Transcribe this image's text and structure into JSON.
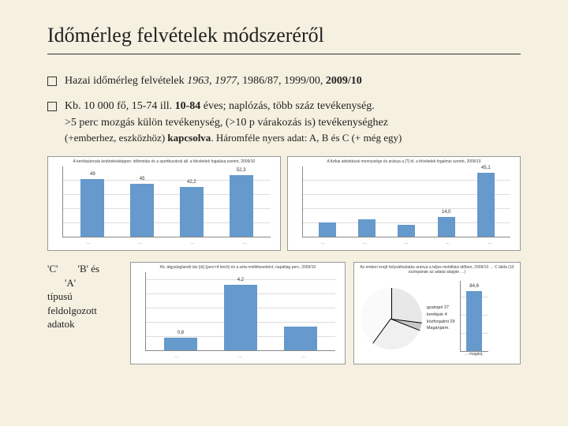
{
  "title": "Időmérleg felvételek módszeréről",
  "bullets": [
    {
      "prefix": "Hazai időmérleg felvételek ",
      "italic": "1963, 1977",
      "rest": ", 1986/87, 1999/00, ",
      "bold": "2009/10"
    },
    {
      "line1a": "Kb. 10 000 fő, 15-74 ill. ",
      "line1b": "10-84",
      "line1c": " éves; naplózás, több száz tevékenység.",
      "line2": ">5 perc mozgás külön tevékenység, (>10 p várakozás is) tevékenységhez",
      "line3a": "(+emberhez, eszközhöz) ",
      "line3b": "kapcsolva",
      "line3c": ". Háromféle nyers adat: ",
      "line3d": "A, B ",
      "line3e": "és",
      "line3f": " C (+ még egy)"
    }
  ],
  "chart1": {
    "title": "A kerékpározás kedvtelésképpen: időmintás és a sportbuvárok átl. a felvételek fogalása szerint, 2009/10",
    "bar_color": "#6699cc",
    "categories": [
      "…",
      "…",
      "…",
      "…"
    ],
    "values": [
      49.0,
      45.0,
      42.2,
      52.3
    ],
    "max": 60
  },
  "chart2": {
    "title": "A fizikai aktivitások mennyisége és aránya a [?] id. a felvételek fogalmai szerint, 2009/10",
    "bar_color": "#6699cc",
    "categories": [
      "…",
      "…",
      "…",
      "…",
      "…"
    ],
    "values": [
      10,
      12,
      8,
      14.0,
      45.1
    ],
    "labels": [
      "",
      "",
      "",
      "14,0",
      "45,1"
    ],
    "max": 50
  },
  "sidetext": {
    "c": "'C'",
    "indent_b": "'B' és",
    "a": "'A'",
    "l1": "típusú",
    "l2": "feldolgozott",
    "l3": "adatok"
  },
  "chart3": {
    "title": "Kb. átgyaloglandó táv [út] (perc×4 km/ó) és a séta mellékeseként, napátlag perc, 2009/10",
    "bar_color": "#6699cc",
    "categories": [
      "…",
      "…",
      "…"
    ],
    "values": [
      0.8,
      4.2,
      1.5
    ],
    "labels": [
      "0,8",
      "4,2",
      ""
    ],
    "max": 5
  },
  "chart4": {
    "title": "Az emberi erejű helyváltoztatás aránya a teljes mobilitási időben, 2009/10 … C tábla (10 oszlopának az adatai alapján …)",
    "pie": {
      "slices": [
        {
          "label": "gyalogol 27",
          "pct": 27,
          "color": "#e8e8e8"
        },
        {
          "label": "kerékpár 4",
          "pct": 4,
          "color": "#c8c8c8"
        },
        {
          "label": "közforgalmi 29",
          "pct": 29,
          "color": "#f0f0f0"
        },
        {
          "label": "Magánjárm.",
          "pct": 40,
          "color": "#fafafa"
        }
      ]
    },
    "bar": {
      "label": "84,6",
      "value": 84.6,
      "max": 100,
      "xlabel": "… magánj."
    }
  }
}
